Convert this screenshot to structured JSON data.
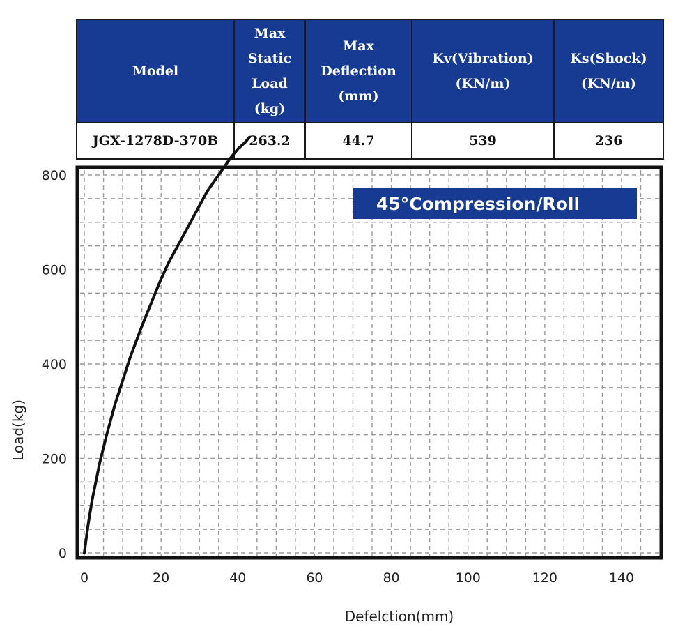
{
  "table": {
    "headers": [
      [
        "Max",
        "Static",
        "Load",
        "(kg)"
      ],
      [
        "Max",
        "Deflection",
        "(mm)"
      ],
      [
        "Kv(Vibration)",
        "(KN/m)"
      ],
      [
        "Ks(Shock)",
        "(KN/m)"
      ]
    ],
    "model_header": "Model",
    "row": {
      "model": "JGX-1278D-370B",
      "max_static_load": "263.2",
      "max_deflection": "44.7",
      "kv": "539",
      "ks": "236"
    }
  },
  "chart_data": {
    "type": "line",
    "annotation": "45°Compression/Roll",
    "xlabel": "Defelction(mm)",
    "ylabel": "Load(kg)",
    "xlim": [
      0,
      150
    ],
    "ylim": [
      0,
      880
    ],
    "xticks": [
      0,
      20,
      40,
      60,
      80,
      100,
      120,
      140
    ],
    "yticks": [
      0,
      200,
      400,
      600,
      800
    ],
    "grid": true,
    "series": [
      {
        "x": [
          0,
          1,
          2,
          4,
          6,
          8,
          10,
          12,
          15,
          18,
          20,
          22,
          25,
          28,
          30,
          32,
          35,
          38,
          40,
          42,
          43
        ],
        "y": [
          0,
          60,
          110,
          190,
          255,
          315,
          365,
          415,
          480,
          540,
          580,
          615,
          660,
          705,
          735,
          765,
          800,
          835,
          855,
          870,
          880
        ]
      }
    ],
    "colors": {
      "header_bg": "#173a92",
      "line": "#111111",
      "grid": "#9a9a9a",
      "frame": "#111111",
      "annotation_bg": "#173a92"
    }
  }
}
